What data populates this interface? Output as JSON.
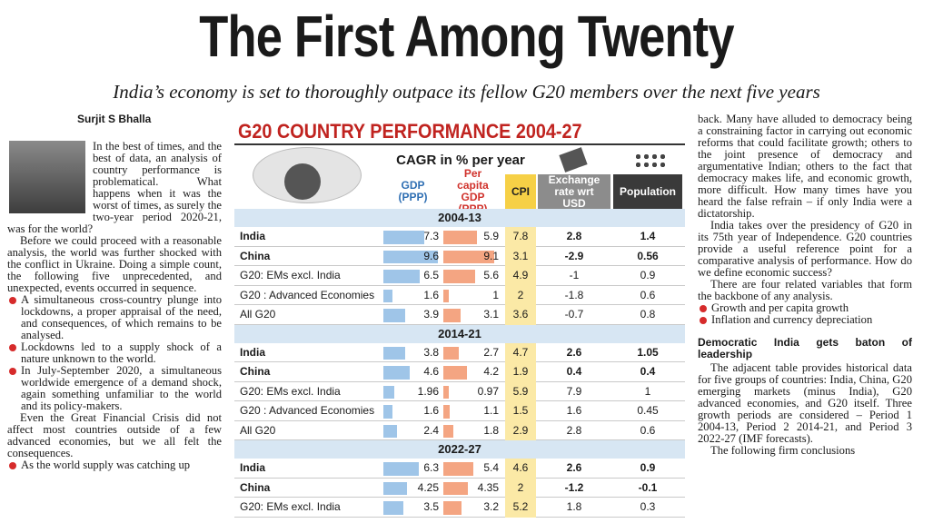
{
  "header": {
    "title": "The First Among Twenty",
    "subtitle": "India’s economy is set to thoroughly outpace its fellow G20 members over the next five years",
    "byline": "Surjit S Bhalla"
  },
  "left_column": {
    "intro": [
      "In the best of times, and the best of data, an analysis of country performance is problematical. What happens when it was the worst of times, as surely the two-year period 2020-21, was for the world?",
      "Before we could proceed with a reasonable analysis, the world was further shocked with the conflict in Ukraine. Doing a simple count, the following five unprecedented, and unexpected, events occurred in sequence."
    ],
    "bullets": [
      "A simultaneous cross-country plunge into lockdowns, a proper appraisal of the need, and consequences, of which remains to be analysed.",
      "Lockdowns led to a supply shock of a nature unknown to the world.",
      "In July-September 2020, a simultaneous worldwide emergence of a demand shock, again something unfamiliar to the world and its policy-makers."
    ],
    "after": [
      "Even the Great Financial Crisis did not affect most countries outside of a few advanced economies, but we all felt the consequences."
    ],
    "bullets_2": [
      "As the world supply was catching up"
    ]
  },
  "right_column": {
    "paragraphs": [
      "back. Many have alluded to democracy being a constraining factor in carrying out economic reforms that could facilitate growth; others to the joint presence of democracy and argumentative Indian; others to the fact that democracy makes life, and economic growth, more difficult. How many times have you heard the false refrain – if only India were a dictatorship.",
      "India takes over the presidency of G20 in its 75th year of Independence. G20 countries provide a useful reference point for a comparative analysis of performance. How do we define economic success?",
      "There are four related variables that form the backbone of any analysis."
    ],
    "bullets": [
      "Growth and per capita growth",
      "Inflation and currency depreciation"
    ],
    "heading": "Democratic India gets baton of leadership",
    "paragraphs_2": [
      "The adjacent table provides historical data for five groups of countries: India, China, G20 emerging markets (minus India), G20 advanced economies, and G20 itself. Three growth periods are considered – Period 1 2004-13, Period 2 2014-21, and Period 3 2022-27 (IMF forecasts).",
      "The following firm conclusions"
    ]
  },
  "table": {
    "title": "G20 COUNTRY PERFORMANCE 2004-27",
    "subtitle": "CAGR in % per year",
    "columns": [
      "GDP (PPP)",
      "Per capita GDP (PPP)",
      "CPI",
      "Exchange rate wrt USD",
      "Population"
    ],
    "sections": [
      {
        "period": "2004-13",
        "rows": [
          {
            "name": "India",
            "values": [
              7.3,
              5.9,
              7.8,
              2.8,
              1.4
            ]
          },
          {
            "name": "China",
            "values": [
              9.6,
              9.1,
              3.1,
              -2.9,
              0.56
            ]
          },
          {
            "name": "G20: EMs excl. India",
            "values": [
              6.5,
              5.6,
              4.9,
              -1,
              0.9
            ]
          },
          {
            "name": "G20 : Advanced Economies",
            "values": [
              1.6,
              1,
              2,
              -1.8,
              0.6
            ]
          },
          {
            "name": "All G20",
            "values": [
              3.9,
              3.1,
              3.6,
              -0.7,
              0.8
            ]
          }
        ]
      },
      {
        "period": "2014-21",
        "rows": [
          {
            "name": "India",
            "values": [
              3.8,
              2.7,
              4.7,
              2.6,
              1.05
            ]
          },
          {
            "name": "China",
            "values": [
              4.6,
              4.2,
              1.9,
              0.4,
              0.4
            ]
          },
          {
            "name": "G20: EMs excl. India",
            "values": [
              1.96,
              0.97,
              5.9,
              7.9,
              1
            ]
          },
          {
            "name": "G20 : Advanced Economies",
            "values": [
              1.6,
              1.1,
              1.5,
              1.6,
              0.45
            ]
          },
          {
            "name": "All G20",
            "values": [
              2.4,
              1.8,
              2.9,
              2.8,
              0.6
            ]
          }
        ]
      },
      {
        "period": "2022-27",
        "rows": [
          {
            "name": "India",
            "values": [
              6.3,
              5.4,
              4.6,
              2.6,
              0.9
            ]
          },
          {
            "name": "China",
            "values": [
              4.25,
              4.35,
              2,
              -1.2,
              -0.1
            ]
          },
          {
            "name": "G20: EMs excl. India",
            "values": [
              3.5,
              3.2,
              5.2,
              1.8,
              0.3
            ]
          }
        ]
      }
    ]
  }
}
